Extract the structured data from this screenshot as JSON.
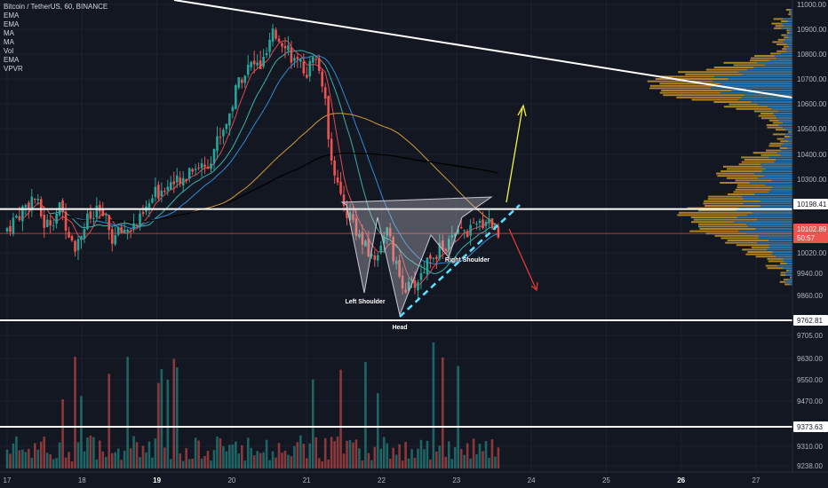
{
  "header": {
    "symbol_line": "Bitcoin / TetherUS, 60, BINANCE",
    "indicators": [
      "EMA",
      "EMA",
      "MA",
      "MA",
      "Vol",
      "EMA",
      "VPVR"
    ]
  },
  "chart_data": {
    "type": "candlestick",
    "xlabel": "",
    "ylabel": "",
    "price_axis": {
      "ticks": [
        "11000.00",
        "10900.00",
        "10800.00",
        "10700.00",
        "10600.00",
        "10500.00",
        "10400.00",
        "10300.00",
        "10020.00",
        "9940.00",
        "9860.00",
        "9705.00",
        "9630.00",
        "9550.00",
        "9470.00",
        "9310.00",
        "9238.00"
      ],
      "highlighted": [
        {
          "label": "10198.41",
          "value": 10198.41,
          "style": "white"
        },
        {
          "label": "10102.89",
          "value": 10102.89,
          "style": "red"
        },
        {
          "label": "50:57",
          "style": "red"
        },
        {
          "label": "9762.81",
          "value": 9762.81,
          "style": "white"
        },
        {
          "label": "9373.63",
          "value": 9373.63,
          "style": "white"
        }
      ]
    },
    "date_axis": {
      "ticks": [
        "17",
        "18",
        "19",
        "20",
        "21",
        "22",
        "23",
        "24",
        "25",
        "26",
        "27"
      ],
      "bold": [
        "19",
        "26"
      ]
    },
    "ohlc_path": [
      [
        17.0,
        10110
      ],
      [
        17.2,
        10180
      ],
      [
        17.4,
        10250
      ],
      [
        17.55,
        10130
      ],
      [
        17.75,
        10200
      ],
      [
        17.95,
        10060
      ],
      [
        18.1,
        10150
      ],
      [
        18.3,
        10190
      ],
      [
        18.45,
        10080
      ],
      [
        18.6,
        10120
      ],
      [
        18.8,
        10140
      ],
      [
        19.0,
        10250
      ],
      [
        19.2,
        10310
      ],
      [
        19.35,
        10290
      ],
      [
        19.5,
        10370
      ],
      [
        19.7,
        10370
      ],
      [
        19.9,
        10500
      ],
      [
        20.0,
        10560
      ],
      [
        20.15,
        10720
      ],
      [
        20.3,
        10760
      ],
      [
        20.45,
        10760
      ],
      [
        20.6,
        10880
      ],
      [
        20.75,
        10860
      ],
      [
        20.9,
        10760
      ],
      [
        21.05,
        10740
      ],
      [
        21.15,
        10790
      ],
      [
        21.25,
        10700
      ],
      [
        21.35,
        10450
      ],
      [
        21.5,
        10220
      ],
      [
        21.65,
        10160
      ],
      [
        21.8,
        10050
      ],
      [
        21.95,
        10000
      ],
      [
        22.1,
        10130
      ],
      [
        22.25,
        9950
      ],
      [
        22.4,
        9880
      ],
      [
        22.55,
        9930
      ],
      [
        22.7,
        10030
      ],
      [
        22.85,
        10040
      ],
      [
        23.0,
        10080
      ],
      [
        23.15,
        10110
      ],
      [
        23.3,
        10120
      ],
      [
        23.45,
        10170
      ],
      [
        23.55,
        10130
      ],
      [
        23.6,
        10103
      ]
    ],
    "horizontal_levels": [
      10198.41,
      10102.89,
      9762.81,
      9373.63
    ],
    "trendline": {
      "x": [
        18.65,
        27.4
      ],
      "y": [
        11040,
        10590
      ]
    },
    "pattern": {
      "name": "Inverse Head and Shoulders",
      "labels": {
        "left": "Left Shoulder",
        "head": "Head",
        "right": "Right Shoulder"
      },
      "neckline": {
        "x": [
          22.25,
          23.55
        ],
        "y": [
          9780,
          10130
        ]
      }
    },
    "projections": {
      "bullish": {
        "color": "#f5f542"
      },
      "bearish": {
        "color": "#e53935"
      }
    },
    "colors": {
      "up": "#26a69a",
      "down": "#ef5350",
      "background": "#131722",
      "ema_short": "#e0484f",
      "ema_mid": "#3bb0a6",
      "ma_orange": "#d49a3a",
      "ma_black": "#000000",
      "ema_blue": "#2e8bd6",
      "vpvr_up": "#1d6fb8",
      "vpvr_down": "#c8952b",
      "neckline": "#5ce1ff"
    }
  }
}
